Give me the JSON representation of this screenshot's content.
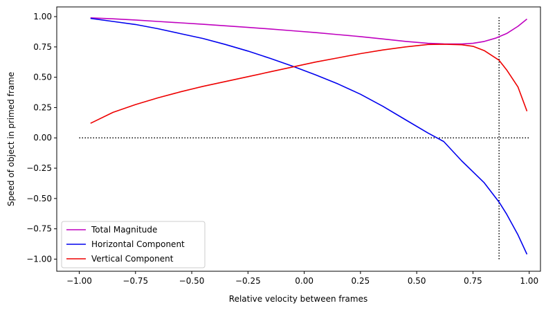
{
  "chart_data": {
    "type": "line",
    "title": "",
    "xlabel": "Relative velocity between frames",
    "ylabel": "Speed of object in primed frame",
    "xlim": [
      -1.1,
      1.05
    ],
    "ylim": [
      -1.1,
      1.08
    ],
    "xticks": [
      -1.0,
      -0.75,
      -0.5,
      -0.25,
      0.0,
      0.25,
      0.5,
      0.75,
      1.0
    ],
    "xtick_labels": [
      "−1.00",
      "−0.75",
      "−0.50",
      "−0.25",
      "0.00",
      "0.25",
      "0.50",
      "0.75",
      "1.00"
    ],
    "yticks": [
      1.0,
      0.75,
      0.5,
      0.25,
      0.0,
      -0.25,
      -0.5,
      -0.75,
      -1.0
    ],
    "ytick_labels": [
      "1.00",
      "0.75",
      "0.50",
      "0.25",
      "0.00",
      "−0.25",
      "−0.50",
      "−0.75",
      "−1.00"
    ],
    "grid": false,
    "legend_position": "lower-left",
    "series": [
      {
        "name": "Total Magnitude",
        "color": "#bf00bf",
        "x": [
          -0.95,
          -0.85,
          -0.75,
          -0.65,
          -0.55,
          -0.45,
          -0.35,
          -0.25,
          -0.15,
          -0.05,
          0.05,
          0.15,
          0.25,
          0.35,
          0.45,
          0.55,
          0.62,
          0.7,
          0.75,
          0.8,
          0.85,
          0.9,
          0.95,
          0.99
        ],
        "y": [
          0.99,
          0.982,
          0.972,
          0.96,
          0.949,
          0.937,
          0.924,
          0.911,
          0.898,
          0.883,
          0.868,
          0.852,
          0.835,
          0.816,
          0.796,
          0.78,
          0.775,
          0.774,
          0.78,
          0.795,
          0.822,
          0.861,
          0.92,
          0.98
        ]
      },
      {
        "name": "Horizontal Component",
        "color": "#0000ee",
        "x": [
          -0.95,
          -0.85,
          -0.75,
          -0.65,
          -0.55,
          -0.45,
          -0.35,
          -0.25,
          -0.15,
          -0.05,
          0.05,
          0.15,
          0.25,
          0.35,
          0.45,
          0.55,
          0.62,
          0.7,
          0.75,
          0.8,
          0.866,
          0.9,
          0.95,
          0.99
        ],
        "y": [
          0.985,
          0.96,
          0.935,
          0.9,
          0.86,
          0.82,
          0.77,
          0.716,
          0.655,
          0.59,
          0.52,
          0.445,
          0.36,
          0.26,
          0.15,
          0.04,
          -0.03,
          -0.19,
          -0.28,
          -0.37,
          -0.53,
          -0.63,
          -0.8,
          -0.96
        ]
      },
      {
        "name": "Vertical Component",
        "color": "#ee0000",
        "x": [
          -0.95,
          -0.85,
          -0.75,
          -0.65,
          -0.55,
          -0.45,
          -0.35,
          -0.25,
          -0.15,
          -0.05,
          0.05,
          0.15,
          0.25,
          0.35,
          0.45,
          0.55,
          0.62,
          0.7,
          0.75,
          0.8,
          0.866,
          0.9,
          0.95,
          0.99
        ],
        "y": [
          0.12,
          0.21,
          0.275,
          0.33,
          0.38,
          0.425,
          0.465,
          0.505,
          0.545,
          0.585,
          0.625,
          0.66,
          0.695,
          0.725,
          0.75,
          0.77,
          0.772,
          0.768,
          0.755,
          0.72,
          0.64,
          0.56,
          0.42,
          0.22
        ]
      }
    ],
    "reference_lines": [
      {
        "orientation": "horizontal",
        "y": 0.0,
        "x_from": -1.0,
        "x_to": 1.0,
        "style": "dotted",
        "color": "#000000"
      },
      {
        "orientation": "vertical",
        "x": 0.866,
        "y_from": -1.0,
        "y_to": 1.0,
        "style": "dotted",
        "color": "#000000"
      }
    ]
  }
}
